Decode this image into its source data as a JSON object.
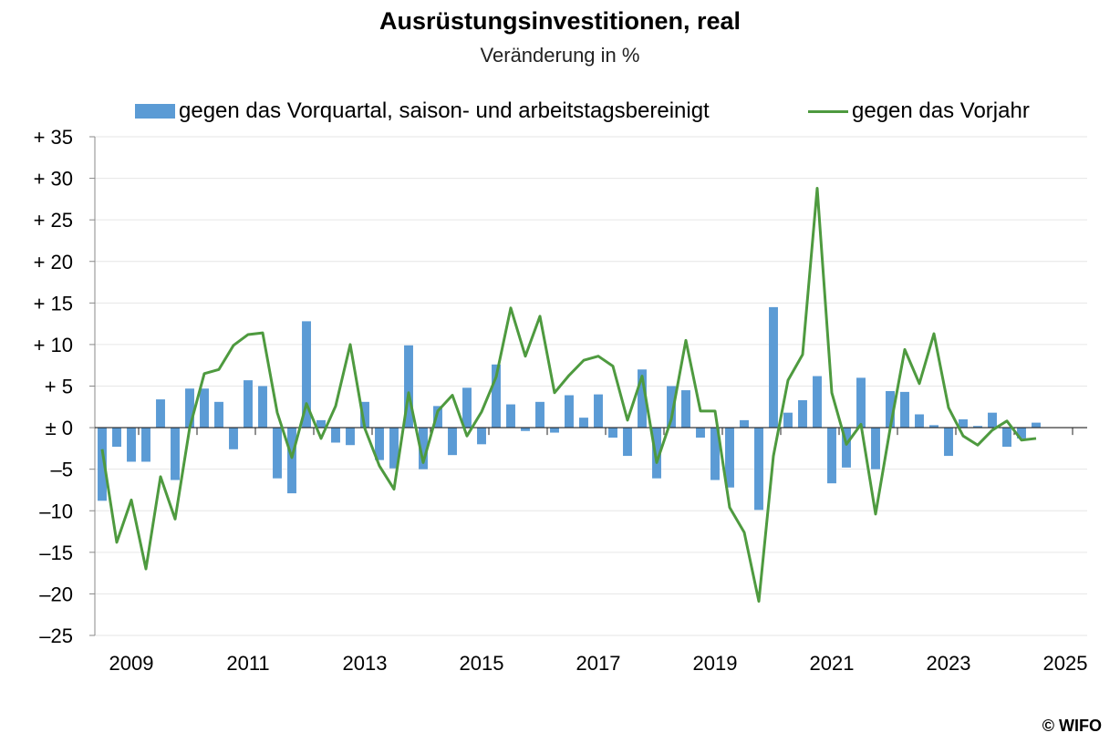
{
  "title": "Ausrüstungsinvestitionen, real",
  "subtitle": "Veränderung in %",
  "copyright": "© WIFO",
  "colors": {
    "bars": "#5B9BD5",
    "line": "#4E9A3F",
    "grid": "#e6e6e6"
  },
  "legend": {
    "bar_label": "gegen das Vorquartal, saison- und arbeitstagsbereinigt",
    "line_label": "gegen das Vorjahr"
  },
  "chart_data": {
    "type": "bar",
    "title": "Ausrüstungsinvestitionen, real",
    "ylabel": "Veränderung in %",
    "ylim": [
      -25,
      35
    ],
    "yticks": [
      {
        "value": 35,
        "label": "+ 35"
      },
      {
        "value": 30,
        "label": "+ 30"
      },
      {
        "value": 25,
        "label": "+ 25"
      },
      {
        "value": 20,
        "label": "+ 20"
      },
      {
        "value": 15,
        "label": "+ 15"
      },
      {
        "value": 10,
        "label": "+ 10"
      },
      {
        "value": 5,
        "label": "+ 5"
      },
      {
        "value": 0,
        "label": "± 0"
      },
      {
        "value": -5,
        "label": "–5"
      },
      {
        "value": -10,
        "label": "–10"
      },
      {
        "value": -15,
        "label": "–15"
      },
      {
        "value": -20,
        "label": "–20"
      },
      {
        "value": -25,
        "label": "–25"
      }
    ],
    "xlabels": [
      "2009",
      "2011",
      "2013",
      "2015",
      "2017",
      "2019",
      "2021",
      "2023",
      "2025"
    ],
    "x_start_year": 2008,
    "x_end_year": 2025,
    "grid": true,
    "legend_position": "top",
    "series": [
      {
        "name": "gegen das Vorquartal, saison- und arbeitstagsbereinigt",
        "type": "bar",
        "values": [
          -8.8,
          -2.3,
          -4.1,
          -4.1,
          3.4,
          -6.3,
          4.7,
          4.7,
          3.1,
          -2.6,
          5.7,
          5.0,
          -6.1,
          -7.9,
          12.8,
          0.9,
          -1.8,
          -2.1,
          3.1,
          -3.9,
          -4.9,
          9.9,
          -5.0,
          2.6,
          -3.3,
          4.8,
          -2.0,
          7.6,
          2.8,
          -0.4,
          3.1,
          -0.6,
          3.9,
          1.2,
          4.0,
          -1.2,
          -3.4,
          7.0,
          -6.1,
          5.0,
          4.5,
          -1.2,
          -6.3,
          -7.2,
          0.9,
          -9.9,
          14.5,
          1.8,
          3.3,
          6.2,
          -6.7,
          -4.8,
          6.0,
          -5.0,
          4.4,
          4.3,
          1.6,
          0.3,
          -3.4,
          1.0,
          0.2,
          1.8,
          -2.3,
          -1.3,
          0.6
        ]
      },
      {
        "name": "gegen das Vorjahr",
        "type": "line",
        "values": [
          -2.6,
          -13.8,
          -8.7,
          -17.0,
          -5.9,
          -11.0,
          0.0,
          6.5,
          7.0,
          9.9,
          11.2,
          11.4,
          1.8,
          -3.6,
          2.9,
          -1.3,
          2.6,
          10.0,
          -0.1,
          -4.6,
          -7.4,
          4.2,
          -4.2,
          2.0,
          3.9,
          -1.0,
          1.9,
          6.1,
          14.4,
          8.6,
          13.4,
          4.2,
          6.3,
          8.1,
          8.6,
          7.4,
          0.9,
          6.2,
          -4.2,
          1.0,
          10.5,
          2.0,
          2.0,
          -9.6,
          -12.6,
          -20.9,
          -3.4,
          5.7,
          8.8,
          28.8,
          4.2,
          -2.0,
          0.4,
          -10.4,
          -0.1,
          9.4,
          5.3,
          11.3,
          2.4,
          -1.0,
          -2.1,
          -0.3,
          0.8,
          -1.5,
          -1.3
        ]
      }
    ]
  }
}
